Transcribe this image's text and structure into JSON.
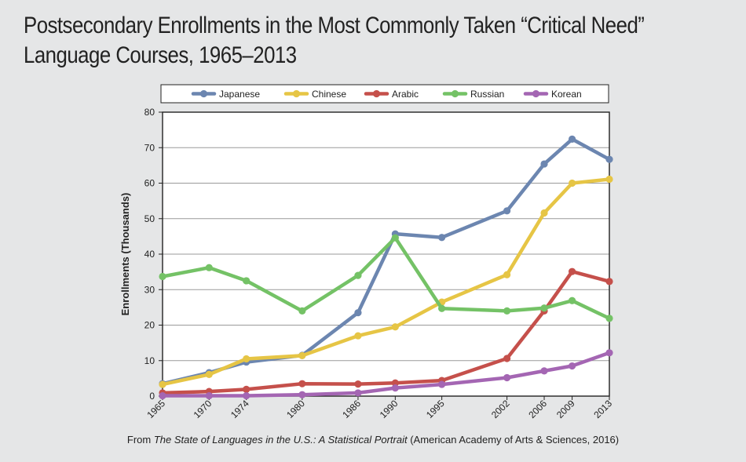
{
  "title_line1": "Postsecondary Enrollments in the Most Commonly Taken “Critical Need”",
  "title_line2": "Language Courses, 1965–2013",
  "source": {
    "prefix": "From ",
    "italic": "The State of Languages in the U.S.: A Statistical Portrait",
    "suffix": " (American Academy of Arts & Sciences, 2016)"
  },
  "chart_data": {
    "type": "line",
    "title": "Postsecondary Enrollments in the Most Commonly Taken “Critical Need” Language Courses, 1965–2013",
    "xlabel": "",
    "ylabel": "Enrollments (Thousands)",
    "ylim": [
      0,
      80
    ],
    "yticks": [
      0,
      10,
      20,
      30,
      40,
      50,
      60,
      70,
      80
    ],
    "xlim": [
      1965,
      2013
    ],
    "x": [
      1965,
      1970,
      1974,
      1980,
      1986,
      1990,
      1995,
      2002,
      2006,
      2009,
      2013
    ],
    "grid": true,
    "legend_position": "top",
    "series": [
      {
        "name": "Japanese",
        "color": "#6c86b0",
        "values": [
          3.5,
          6.6,
          9.6,
          11.5,
          23.5,
          45.7,
          44.7,
          52.2,
          65.4,
          72.4,
          66.7
        ]
      },
      {
        "name": "Chinese",
        "color": "#e6c545",
        "values": [
          3.3,
          6.1,
          10.5,
          11.4,
          17.0,
          19.5,
          26.5,
          34.2,
          51.6,
          60.0,
          61.1
        ]
      },
      {
        "name": "Arabic",
        "color": "#c5504b",
        "values": [
          0.9,
          1.3,
          1.9,
          3.5,
          3.4,
          3.7,
          4.4,
          10.6,
          24.0,
          35.1,
          32.3
        ]
      },
      {
        "name": "Russian",
        "color": "#74c266",
        "values": [
          33.7,
          36.2,
          32.5,
          24.0,
          34.0,
          44.6,
          24.7,
          24.0,
          24.8,
          26.9,
          21.9
        ]
      },
      {
        "name": "Korean",
        "color": "#a466b3",
        "values": [
          0.1,
          0.1,
          0.1,
          0.4,
          0.9,
          2.3,
          3.3,
          5.2,
          7.1,
          8.5,
          12.2
        ]
      }
    ]
  }
}
